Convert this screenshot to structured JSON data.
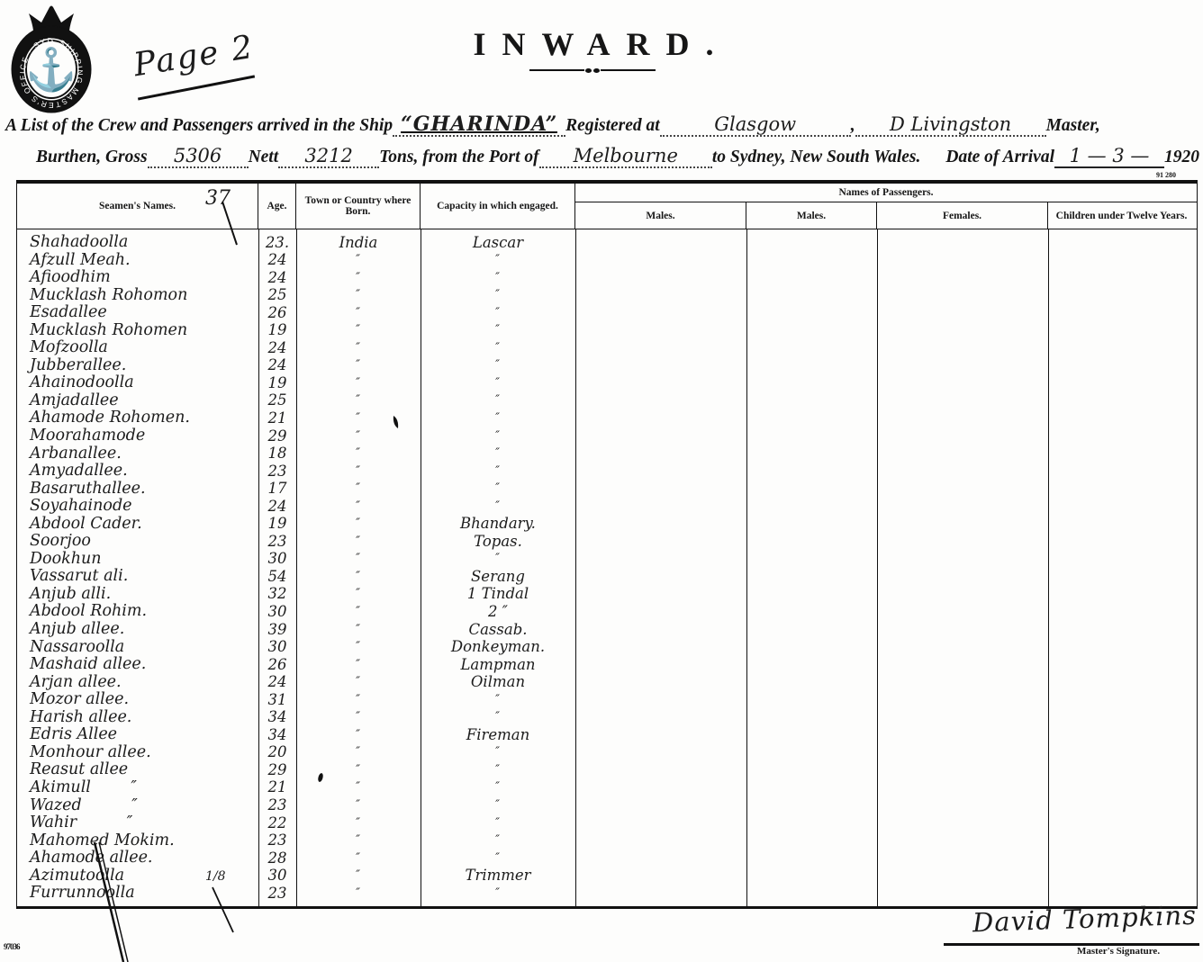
{
  "colors": {
    "ink": "#161616",
    "paper": "#fdfdfc"
  },
  "page_annotation": "Page 2",
  "title": "INWARD.",
  "seal": {
    "ring_text": "· SHIPPING MASTER'S OFFICE · SYDNEY ·"
  },
  "form_number": "91 280",
  "print_code": "97036",
  "line1": {
    "prefix": "A List of the Crew and Passengers arrived in the Ship",
    "ship_name": "“GHARINDA”",
    "registered_at_label": "Registered at",
    "registered_at_value": "Glasgow",
    "comma": ",",
    "master_value": "D Livingston",
    "master_label": "Master,"
  },
  "line2": {
    "burthen_label": "Burthen, Gross",
    "gross_value": "5306",
    "nett_label": "Nett",
    "nett_value": "3212",
    "tons_label": "Tons, from the Port of",
    "port_value": "Melbourne",
    "destination_label": "to Sydney, New South Wales.",
    "arrival_label": "Date of Arrival",
    "arrival_value": "1 — 3 —",
    "arrival_year": "1920"
  },
  "annotations": {
    "names_header_mark": "37",
    "row37_mark": "1/8"
  },
  "table": {
    "headers": {
      "seamen_names": "Seamen's Names.",
      "age": "Age.",
      "town_or_country": "Town or Country where Born.",
      "capacity": "Capacity in which engaged.",
      "passengers_group": "Names of Passengers.",
      "males1": "Males.",
      "males2": "Males.",
      "females": "Females.",
      "children": "Children under Twelve Years."
    },
    "rows": [
      {
        "name": "Shahadoolla",
        "age": "23.",
        "born": "India",
        "capacity": "Lascar"
      },
      {
        "name": "Afzull Meah.",
        "age": "24",
        "born": "″",
        "capacity": "″"
      },
      {
        "name": "Afioodhim",
        "age": "24",
        "born": "″",
        "capacity": "″"
      },
      {
        "name": "Mucklash Rohomon",
        "age": "25",
        "born": "″",
        "capacity": "″"
      },
      {
        "name": "Esadallee",
        "age": "26",
        "born": "″",
        "capacity": "″"
      },
      {
        "name": "Mucklash Rohomen",
        "age": "19",
        "born": "″",
        "capacity": "″"
      },
      {
        "name": "Mofzoolla",
        "age": "24",
        "born": "″",
        "capacity": "″"
      },
      {
        "name": "Jubberallee.",
        "age": "24",
        "born": "″",
        "capacity": "″"
      },
      {
        "name": "Ahainodoolla",
        "age": "19",
        "born": "″",
        "capacity": "″"
      },
      {
        "name": "Amjadallee",
        "age": "25",
        "born": "″",
        "capacity": "″"
      },
      {
        "name": "Ahamode Rohomen.",
        "age": "21",
        "born": "″",
        "capacity": "″"
      },
      {
        "name": "Moorahamode",
        "age": "29",
        "born": "″",
        "capacity": "″"
      },
      {
        "name": "Arbanallee.",
        "age": "18",
        "born": "″",
        "capacity": "″"
      },
      {
        "name": "Amyadallee.",
        "age": "23",
        "born": "″",
        "capacity": "″"
      },
      {
        "name": "Basaruthallee.",
        "age": "17",
        "born": "″",
        "capacity": "″"
      },
      {
        "name": "Soyahainode",
        "age": "24",
        "born": "″",
        "capacity": "″"
      },
      {
        "name": "Abdool Cader.",
        "age": "19",
        "born": "″",
        "capacity": "Bhandary."
      },
      {
        "name": "Soorjoo",
        "age": "23",
        "born": "″",
        "capacity": "Topas."
      },
      {
        "name": "Dookhun",
        "age": "30",
        "born": "″",
        "capacity": "″"
      },
      {
        "name": "Vassarut ali.",
        "age": "54",
        "born": "″",
        "capacity": "Serang"
      },
      {
        "name": "Anjub alli.",
        "age": "32",
        "born": "″",
        "capacity": "1 Tindal"
      },
      {
        "name": "Abdool Rohim.",
        "age": "30",
        "born": "″",
        "capacity": "2  ″"
      },
      {
        "name": "Anjub allee.",
        "age": "39",
        "born": "″",
        "capacity": "Cassab."
      },
      {
        "name": "Nassaroolla",
        "age": "30",
        "born": "″",
        "capacity": "Donkeyman."
      },
      {
        "name": "Mashaid allee.",
        "age": "26",
        "born": "″",
        "capacity": "Lampman"
      },
      {
        "name": "Arjan allee.",
        "age": "24",
        "born": "″",
        "capacity": "Oilman"
      },
      {
        "name": "Mozor allee.",
        "age": "31",
        "born": "″",
        "capacity": "″"
      },
      {
        "name": "Harish allee.",
        "age": "34",
        "born": "″",
        "capacity": "″"
      },
      {
        "name": "Edris Allee",
        "age": "34",
        "born": "″",
        "capacity": "Fireman"
      },
      {
        "name": "Monhour allee.",
        "age": "20",
        "born": "″",
        "capacity": "″"
      },
      {
        "name": "Reasut allee",
        "age": "29",
        "born": "″",
        "capacity": "″"
      },
      {
        "name": "Akimull        ″",
        "age": "21",
        "born": "″",
        "capacity": "″"
      },
      {
        "name": "Wazed          ″",
        "age": "23",
        "born": "″",
        "capacity": "″"
      },
      {
        "name": "Wahir          ″",
        "age": "22",
        "born": "″",
        "capacity": "″"
      },
      {
        "name": "Mahomed Mokim.",
        "age": "23",
        "born": "″",
        "capacity": "″"
      },
      {
        "name": "Ahamode allee.",
        "age": "28",
        "born": "″",
        "capacity": "″"
      },
      {
        "name": "Azimutoolla",
        "age": "30",
        "born": "″",
        "capacity": "Trimmer"
      },
      {
        "name": "Furrunnoolla",
        "age": "23",
        "born": "″",
        "capacity": "″"
      }
    ]
  },
  "signature": {
    "handwritten": "David Tompkins",
    "label": "Master's Signature."
  }
}
